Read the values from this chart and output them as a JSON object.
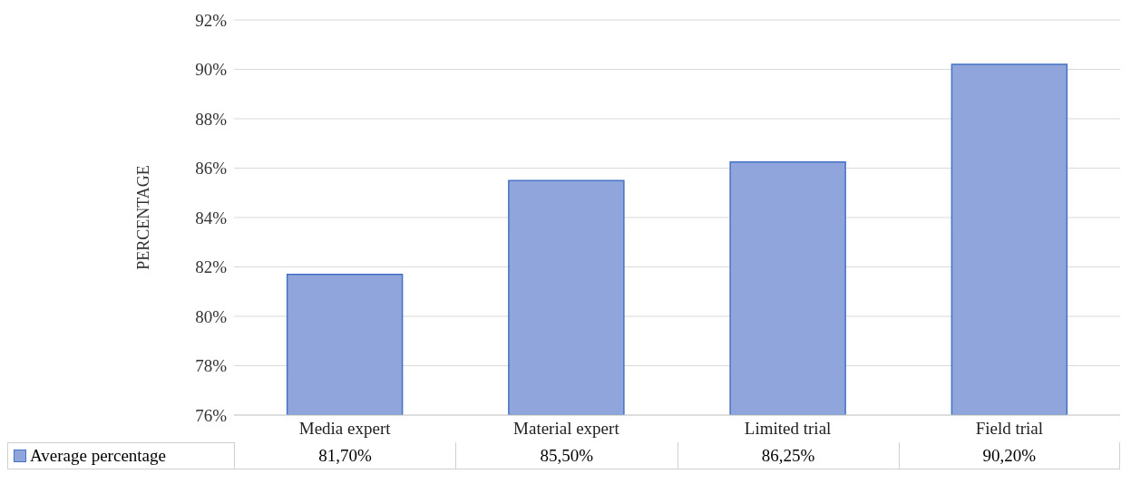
{
  "chart_data": {
    "type": "bar",
    "ylabel": "PERCENTAGE",
    "categories": [
      "Media expert",
      "Material expert",
      "Limited trial",
      "Field trial"
    ],
    "series": [
      {
        "name": "Average percentage",
        "color": "#8fa5db",
        "values": [
          81.7,
          85.5,
          86.25,
          90.2
        ],
        "value_labels": [
          "81,70%",
          "85,50%",
          "86,25%",
          "90,20%"
        ]
      }
    ],
    "ylim": [
      76,
      92
    ],
    "yticks": [
      {
        "value": 76,
        "label": "76%"
      },
      {
        "value": 78,
        "label": "78%"
      },
      {
        "value": 80,
        "label": "80%"
      },
      {
        "value": 82,
        "label": "82%"
      },
      {
        "value": 84,
        "label": "84%"
      },
      {
        "value": 86,
        "label": "86%"
      },
      {
        "value": 88,
        "label": "88%"
      },
      {
        "value": 90,
        "label": "90%"
      },
      {
        "value": 92,
        "label": "92%"
      }
    ],
    "grid": "y",
    "legend": "bottom left"
  }
}
